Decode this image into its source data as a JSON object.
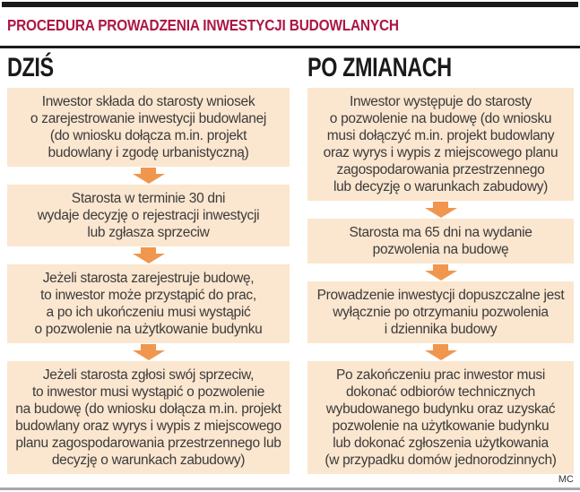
{
  "header": {
    "title": "PROCEDURA PROWADZENIA INWESTYCJI BUDOWLANYCH"
  },
  "columns": {
    "left": {
      "heading": "DZIŚ",
      "boxes": [
        {
          "lines": [
            "Inwestor składa do starosty wniosek",
            "o zarejestrowanie inwestycji budowlanej",
            "(do wniosku dołącza m.in. projekt",
            "budowlany i zgodę urbanistyczną)"
          ]
        },
        {
          "lines": [
            "Starosta w terminie 30 dni",
            "wydaje decyzję o rejestracji inwestycji",
            "lub zgłasza sprzeciw"
          ]
        },
        {
          "lines": [
            "Jeżeli starosta zarejestruje budowę,",
            "to inwestor może przystąpić do prac,",
            "a po ich ukończeniu musi wystąpić",
            "o pozwolenie na użytkowanie budynku"
          ]
        },
        {
          "lines": [
            "Jeżeli starosta zgłosi swój sprzeciw,",
            "to inwestor musi wystąpić o pozwolenie",
            "na budowę (do wniosku dołącza m.in. projekt",
            "budowlany oraz wyrys i wypis z miejscowego",
            "planu zagospodarowania przestrzennego lub",
            "decyzję o warunkach zabudowy)"
          ]
        }
      ]
    },
    "right": {
      "heading": "PO ZMIANACH",
      "boxes": [
        {
          "lines": [
            "Inwestor występuje do starosty",
            "o pozwolenie na budowę (do wniosku",
            "musi dołączyć m.in. projekt budowlany",
            "oraz wyrys i wypis z miejscowego planu",
            "zagospodarowania przestrzennego",
            "lub decyzję o warunkach zabudowy)"
          ]
        },
        {
          "lines": [
            "Starosta ma 65 dni na wydanie",
            "pozwolenia na budowę"
          ]
        },
        {
          "lines": [
            "Prowadzenie inwestycji dopuszczalne jest",
            "wyłącznie po otrzymaniu pozwolenia",
            "i dziennika budowy"
          ]
        },
        {
          "lines": [
            "Po zakończeniu prac inwestor musi",
            "dokonać odbiorów technicznych",
            "wybudowanego budynku oraz uzyskać",
            "pozwolenie na użytkowanie budynku",
            "lub dokonać zgłoszenia użytkowania",
            "(w przypadku domów jednorodzinnych)"
          ]
        }
      ]
    }
  },
  "footer": {
    "credit": "MC"
  },
  "colors": {
    "accent": "#ad1745",
    "box_bg": "#fbe6cf",
    "arrow": "#f0964e",
    "ink": "#1a1a1a",
    "body_text": "#3b3b3b",
    "rule_gray": "#a8a8a8"
  }
}
